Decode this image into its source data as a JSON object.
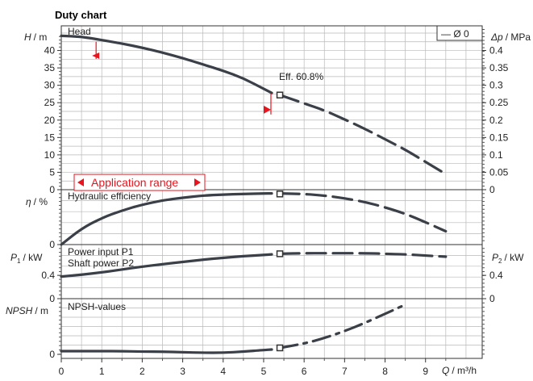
{
  "chart_data": {
    "type": "line",
    "title": "Duty chart",
    "legend": {
      "label": "— Ø 0",
      "placement": "top-right"
    },
    "x": {
      "label_q": "Q",
      "label_unit": "/ m³/h",
      "ticks": [
        "0",
        "1",
        "2",
        "3",
        "4",
        "5",
        "6",
        "7",
        "8",
        "9"
      ],
      "range": [
        0,
        10.4
      ]
    },
    "panels": [
      {
        "name": "head",
        "title": "Head",
        "ylabel_var": "H",
        "ylabel_unit": "/ m",
        "ylim": [
          0,
          45
        ],
        "yticks": [
          0,
          5,
          10,
          15,
          20,
          25,
          30,
          35,
          40
        ],
        "y2label_var": "Δp",
        "y2label_unit": "/ MPa",
        "y2ticks": [
          "0",
          "0.05",
          "0.1",
          "0.15",
          "0.2",
          "0.25",
          "0.3",
          "0.35",
          "0.4"
        ],
        "series_solid": {
          "x": [
            0,
            0.5,
            1,
            1.5,
            2,
            2.5,
            3,
            3.5,
            4,
            4.5,
            5,
            5.2
          ],
          "y": [
            44.2,
            44.0,
            43.0,
            42.0,
            40.8,
            39.4,
            37.8,
            36.0,
            34.2,
            32.0,
            29.0,
            27.8
          ]
        },
        "series_dashed": {
          "x": [
            5.4,
            6,
            6.5,
            7,
            7.5,
            8,
            8.5,
            9,
            9.5
          ],
          "y": [
            27.2,
            24.8,
            22.8,
            20.2,
            17.5,
            14.5,
            11.5,
            8.0,
            4.5
          ]
        },
        "marker": {
          "x": 5.4,
          "y": 27.2
        },
        "annotation": "Eff. 60.8%",
        "application_range": {
          "label": "Application range",
          "x": [
            0.35,
            3.55
          ]
        },
        "limit_markers": [
          {
            "x": 0.9,
            "y": 38.5
          },
          {
            "x": 5.1,
            "y": 23.0
          }
        ]
      },
      {
        "name": "efficiency",
        "title": "Hydraulic efficiency",
        "ylabel_var": "η",
        "ylabel_unit": "/ %",
        "ylim": [
          0,
          100
        ],
        "yticks": [
          0
        ],
        "series_solid": {
          "x": [
            0,
            0.5,
            1,
            1.5,
            2,
            2.5,
            3,
            3.5,
            4,
            4.5,
            5,
            5.2
          ],
          "y": [
            0,
            30,
            50,
            64,
            75,
            83,
            88,
            92,
            94,
            95,
            96,
            96
          ]
        },
        "series_dashed": {
          "x": [
            5.4,
            6,
            6.5,
            7,
            7.5,
            8,
            8.5,
            9,
            9.5
          ],
          "y": [
            96,
            95,
            92,
            87,
            80,
            70,
            58,
            42,
            25
          ]
        },
        "marker": {
          "x": 5.4,
          "y": 95
        }
      },
      {
        "name": "power",
        "title": "Power input P1",
        "title2": "Shaft power P2",
        "ylabel_var": "P",
        "ylabel_sub": "1",
        "ylabel_unit": "/ kW",
        "y2label_var": "P",
        "y2label_sub": "2",
        "y2label_unit": "/ kW",
        "ylim": [
          0,
          0.9
        ],
        "yticks": [
          0,
          0.4
        ],
        "series_solid": {
          "x": [
            0,
            0.5,
            1,
            1.5,
            2,
            2.5,
            3,
            3.5,
            4,
            4.5,
            5,
            5.2
          ],
          "y": [
            0.38,
            0.41,
            0.45,
            0.5,
            0.55,
            0.59,
            0.63,
            0.67,
            0.7,
            0.73,
            0.75,
            0.76
          ]
        },
        "series_dashed": {
          "x": [
            5.4,
            6,
            6.5,
            7,
            7.5,
            8,
            8.5,
            9,
            9.5
          ],
          "y": [
            0.77,
            0.78,
            0.78,
            0.78,
            0.78,
            0.77,
            0.76,
            0.74,
            0.72
          ]
        },
        "marker": {
          "x": 5.4,
          "y": 0.77
        }
      },
      {
        "name": "npsh",
        "title": "NPSH-values",
        "ylabel_var": "NPSH",
        "ylabel_unit": "/ m",
        "ylim": [
          0,
          10
        ],
        "yticks": [
          0
        ],
        "series_solid": {
          "x": [
            0,
            0.5,
            1,
            1.5,
            2,
            2.5,
            3,
            3.5,
            4,
            4.5,
            5,
            5.2
          ],
          "y": [
            0.6,
            0.6,
            0.6,
            0.6,
            0.5,
            0.5,
            0.4,
            0.3,
            0.3,
            0.5,
            0.8,
            0.9
          ]
        },
        "series_dashed": {
          "x": [
            5.4,
            6,
            6.5,
            7,
            7.5,
            8,
            8.5
          ],
          "y": [
            1.2,
            2.0,
            3.0,
            4.3,
            5.8,
            7.5,
            9.2
          ]
        },
        "marker": {
          "x": 5.4,
          "y": 1.2
        }
      }
    ]
  }
}
